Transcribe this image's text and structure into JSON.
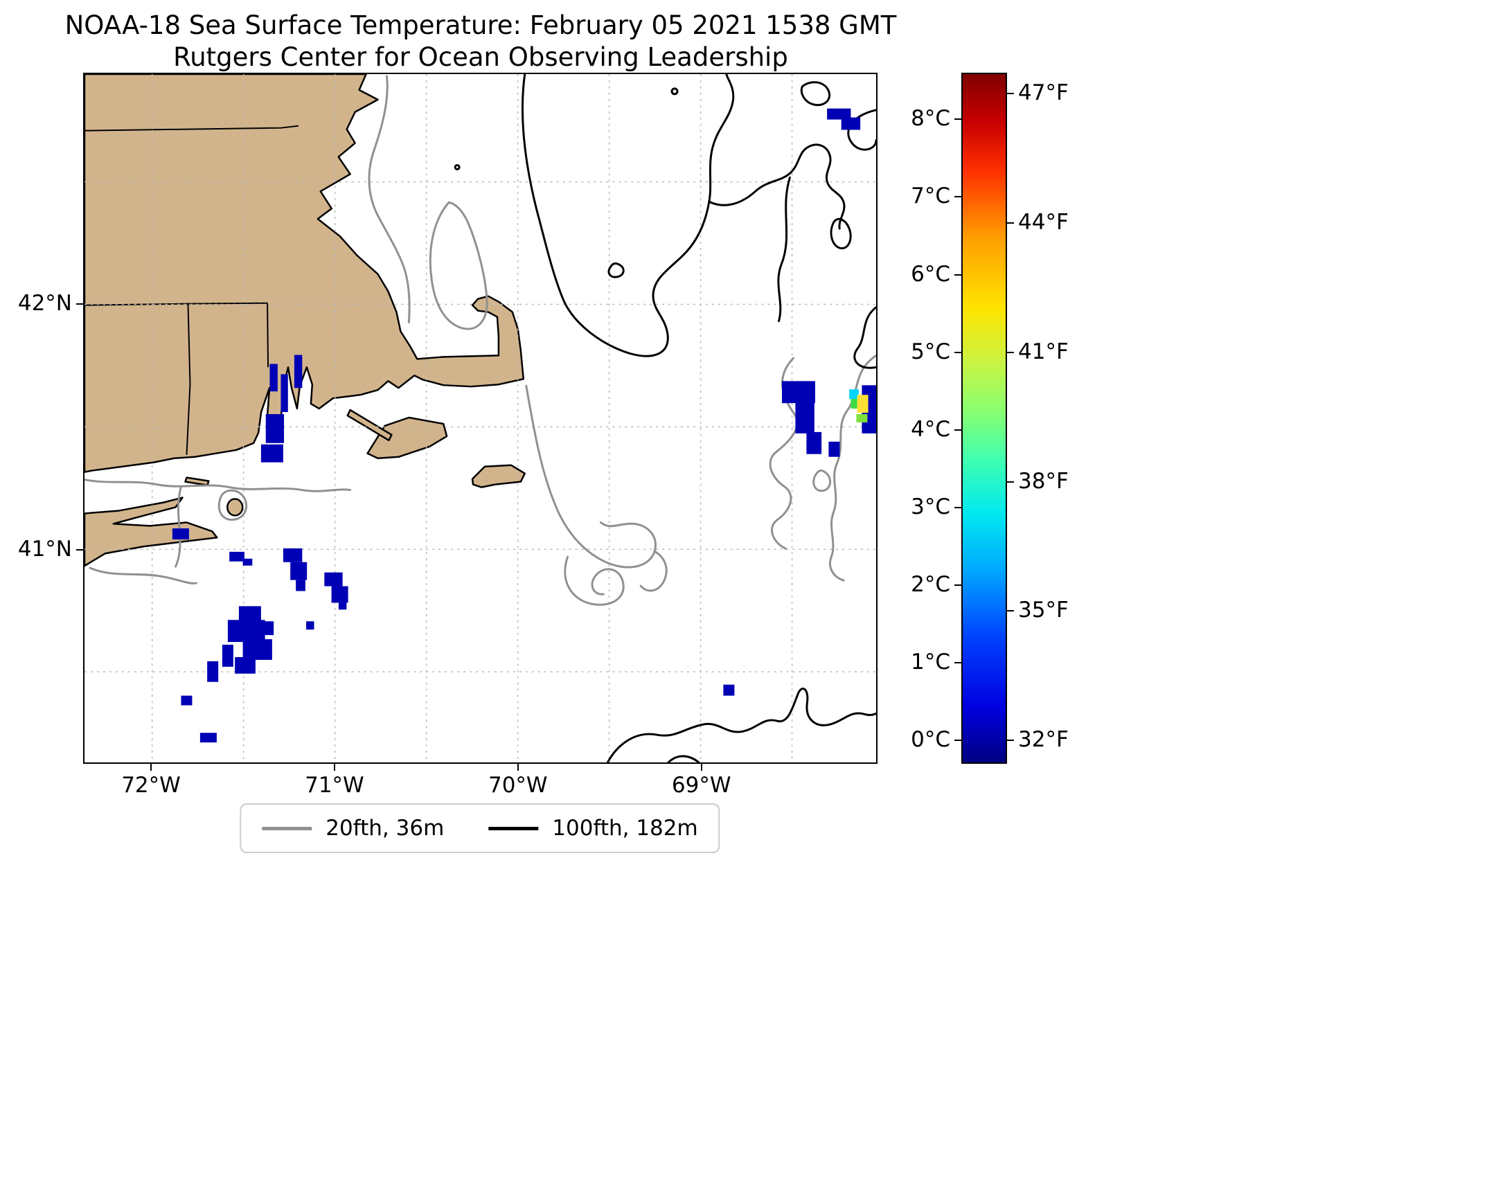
{
  "figure": {
    "title_line1": "NOAA-18 Sea Surface Temperature: February 05 2021 1538 GMT",
    "title_line2": "Rutgers Center for Ocean Observing Leadership"
  },
  "chart_data": {
    "type": "heatmap",
    "subtype": "satellite-sst-map",
    "title": "NOAA-18 Sea Surface Temperature: February 05 2021 1538 GMT",
    "subtitle": "Rutgers Center for Ocean Observing Leadership",
    "lon_range": [
      -72.37,
      -68.04
    ],
    "lat_range": [
      40.13,
      42.94
    ],
    "x_ticks": [
      {
        "label": "72°W",
        "lon": -72
      },
      {
        "label": "71°W",
        "lon": -71
      },
      {
        "label": "70°W",
        "lon": -70
      },
      {
        "label": "69°W",
        "lon": -69
      }
    ],
    "y_ticks": [
      {
        "label": "42°N",
        "lat": 42
      },
      {
        "label": "41°N",
        "lat": 41
      }
    ],
    "grid_lons": [
      -72,
      -71.5,
      -71,
      -70.5,
      -70,
      -69.5,
      -69,
      -68.5
    ],
    "grid_lats": [
      42.5,
      42,
      41.5,
      41,
      40.5
    ],
    "grid_on": true,
    "land_color": "#d2b48c",
    "ocean_color": "#ffffff",
    "colormap": "jet",
    "sst_default_color": "#0000b4",
    "colorbar": {
      "min_c": -0.3,
      "max_c": 8.6,
      "ticks_c": [
        {
          "label": "8°C",
          "c": 8
        },
        {
          "label": "7°C",
          "c": 7
        },
        {
          "label": "6°C",
          "c": 6
        },
        {
          "label": "5°C",
          "c": 5
        },
        {
          "label": "4°C",
          "c": 4
        },
        {
          "label": "3°C",
          "c": 3
        },
        {
          "label": "2°C",
          "c": 2
        },
        {
          "label": "1°C",
          "c": 1
        },
        {
          "label": "0°C",
          "c": 0
        }
      ],
      "ticks_f": [
        {
          "label": "47°F",
          "c": 8.3333
        },
        {
          "label": "44°F",
          "c": 6.6667
        },
        {
          "label": "41°F",
          "c": 5.0
        },
        {
          "label": "38°F",
          "c": 3.3333
        },
        {
          "label": "35°F",
          "c": 1.6667
        },
        {
          "label": "32°F",
          "c": 0.0
        }
      ]
    },
    "legend_entries": [
      {
        "label": "20fth, 36m",
        "color": "#909090"
      },
      {
        "label": "100fth, 182m",
        "color": "#000000"
      }
    ],
    "sst_patches": [
      {
        "x": 23.4,
        "y": 42.1,
        "w": 1.0,
        "h": 4.0
      },
      {
        "x": 24.8,
        "y": 43.6,
        "w": 0.9,
        "h": 5.5
      },
      {
        "x": 26.5,
        "y": 40.8,
        "w": 1.0,
        "h": 4.8
      },
      {
        "x": 22.9,
        "y": 49.4,
        "w": 2.3,
        "h": 4.2
      },
      {
        "x": 22.3,
        "y": 53.8,
        "w": 2.8,
        "h": 2.6
      },
      {
        "x": 11.1,
        "y": 66.0,
        "w": 2.1,
        "h": 1.6
      },
      {
        "x": 18.3,
        "y": 69.4,
        "w": 1.9,
        "h": 1.4
      },
      {
        "x": 20.0,
        "y": 70.4,
        "w": 1.2,
        "h": 1.0
      },
      {
        "x": 25.1,
        "y": 68.9,
        "w": 2.4,
        "h": 2.0
      },
      {
        "x": 26.0,
        "y": 70.9,
        "w": 2.1,
        "h": 2.6
      },
      {
        "x": 26.7,
        "y": 73.5,
        "w": 1.2,
        "h": 1.6
      },
      {
        "x": 30.3,
        "y": 72.4,
        "w": 2.3,
        "h": 2.0
      },
      {
        "x": 31.2,
        "y": 74.4,
        "w": 2.1,
        "h": 2.4
      },
      {
        "x": 32.1,
        "y": 76.8,
        "w": 1.0,
        "h": 1.0
      },
      {
        "x": 28.0,
        "y": 79.5,
        "w": 1.0,
        "h": 1.2
      },
      {
        "x": 19.5,
        "y": 77.3,
        "w": 2.8,
        "h": 2.4
      },
      {
        "x": 18.1,
        "y": 79.3,
        "w": 4.7,
        "h": 3.2
      },
      {
        "x": 20.0,
        "y": 82.1,
        "w": 3.7,
        "h": 3.0
      },
      {
        "x": 19.0,
        "y": 84.7,
        "w": 2.6,
        "h": 2.4
      },
      {
        "x": 17.4,
        "y": 82.9,
        "w": 1.4,
        "h": 3.2
      },
      {
        "x": 21.6,
        "y": 79.5,
        "w": 2.3,
        "h": 2.0
      },
      {
        "x": 15.5,
        "y": 85.3,
        "w": 1.4,
        "h": 3.0
      },
      {
        "x": 12.2,
        "y": 90.3,
        "w": 1.4,
        "h": 1.4
      },
      {
        "x": 14.6,
        "y": 95.7,
        "w": 2.1,
        "h": 1.4
      },
      {
        "x": 88.1,
        "y": 44.6,
        "w": 4.2,
        "h": 3.2
      },
      {
        "x": 89.8,
        "y": 47.6,
        "w": 2.4,
        "h": 4.6
      },
      {
        "x": 91.2,
        "y": 52.0,
        "w": 1.9,
        "h": 3.2
      },
      {
        "x": 94.0,
        "y": 53.4,
        "w": 1.4,
        "h": 2.2
      },
      {
        "x": 98.2,
        "y": 45.2,
        "w": 1.8,
        "h": 7.0
      },
      {
        "x": 96.6,
        "y": 45.8,
        "w": 1.2,
        "h": 1.4,
        "color": "#00d5ff"
      },
      {
        "x": 96.8,
        "y": 47.2,
        "w": 1.2,
        "h": 1.4,
        "color": "#3ddc45"
      },
      {
        "x": 97.6,
        "y": 46.6,
        "w": 1.4,
        "h": 2.6,
        "color": "#ffe135"
      },
      {
        "x": 97.5,
        "y": 49.4,
        "w": 1.4,
        "h": 1.2,
        "color": "#7fe03a"
      },
      {
        "x": 93.8,
        "y": 5.0,
        "w": 3.0,
        "h": 1.6
      },
      {
        "x": 95.6,
        "y": 6.3,
        "w": 2.4,
        "h": 1.8
      },
      {
        "x": 80.7,
        "y": 88.7,
        "w": 1.4,
        "h": 1.6
      }
    ]
  }
}
